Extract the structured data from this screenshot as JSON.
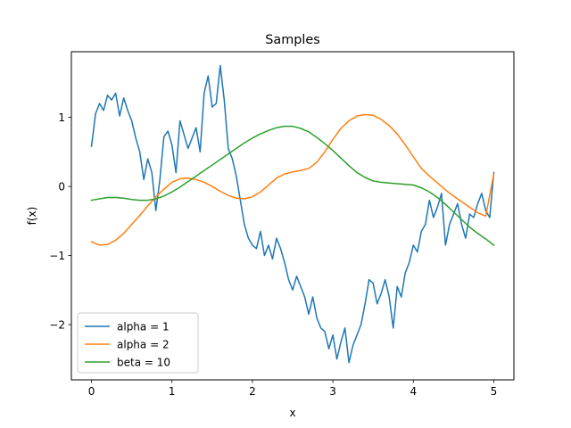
{
  "chart_data": {
    "type": "line",
    "title": "Samples",
    "xlabel": "x",
    "ylabel": "f(x)",
    "xlim": [
      -0.25,
      5.25
    ],
    "ylim": [
      -2.8,
      1.95
    ],
    "xticks": [
      0,
      1,
      2,
      3,
      4,
      5
    ],
    "yticks": [
      -2,
      -1,
      0,
      1
    ],
    "ytick_labels": [
      "−2",
      "−1",
      "0",
      "1"
    ],
    "grid": false,
    "legend_position": "lower-left",
    "series": [
      {
        "name": "alpha = 1",
        "color": "#1f77b4",
        "x": [
          0.0,
          0.05,
          0.1,
          0.15,
          0.2,
          0.25,
          0.3,
          0.35,
          0.4,
          0.45,
          0.5,
          0.55,
          0.6,
          0.65,
          0.7,
          0.75,
          0.8,
          0.85,
          0.9,
          0.95,
          1.0,
          1.05,
          1.1,
          1.15,
          1.2,
          1.25,
          1.3,
          1.35,
          1.4,
          1.45,
          1.5,
          1.55,
          1.6,
          1.65,
          1.7,
          1.75,
          1.8,
          1.85,
          1.9,
          1.95,
          2.0,
          2.05,
          2.1,
          2.15,
          2.2,
          2.25,
          2.3,
          2.35,
          2.4,
          2.45,
          2.5,
          2.55,
          2.6,
          2.65,
          2.7,
          2.75,
          2.8,
          2.85,
          2.9,
          2.95,
          3.0,
          3.05,
          3.1,
          3.15,
          3.2,
          3.25,
          3.3,
          3.35,
          3.4,
          3.45,
          3.5,
          3.55,
          3.6,
          3.65,
          3.7,
          3.75,
          3.8,
          3.85,
          3.9,
          3.95,
          4.0,
          4.05,
          4.1,
          4.15,
          4.2,
          4.25,
          4.3,
          4.35,
          4.4,
          4.45,
          4.5,
          4.55,
          4.6,
          4.65,
          4.7,
          4.75,
          4.8,
          4.85,
          4.9,
          4.95,
          5.0
        ],
        "values": [
          0.58,
          1.05,
          1.2,
          1.1,
          1.32,
          1.25,
          1.35,
          1.02,
          1.28,
          1.1,
          0.95,
          0.7,
          0.5,
          0.1,
          0.4,
          0.2,
          -0.35,
          0.1,
          0.72,
          0.8,
          0.6,
          0.2,
          0.95,
          0.75,
          0.55,
          0.7,
          0.85,
          0.5,
          1.35,
          1.6,
          1.15,
          1.2,
          1.75,
          1.25,
          0.55,
          0.4,
          0.15,
          -0.2,
          -0.55,
          -0.75,
          -0.85,
          -0.9,
          -0.65,
          -1.0,
          -0.85,
          -1.05,
          -0.75,
          -0.9,
          -1.1,
          -1.35,
          -1.5,
          -1.3,
          -1.45,
          -1.6,
          -1.85,
          -1.6,
          -1.9,
          -2.05,
          -2.1,
          -2.35,
          -2.15,
          -2.5,
          -2.25,
          -2.05,
          -2.55,
          -2.3,
          -2.15,
          -2.0,
          -1.7,
          -1.35,
          -1.4,
          -1.7,
          -1.55,
          -1.35,
          -1.6,
          -2.05,
          -1.45,
          -1.6,
          -1.25,
          -1.1,
          -0.85,
          -0.95,
          -0.65,
          -0.55,
          -0.2,
          -0.45,
          -0.3,
          -0.1,
          -0.85,
          -0.55,
          -0.4,
          -0.25,
          -0.55,
          -0.75,
          -0.4,
          -0.45,
          -0.25,
          -0.1,
          -0.35,
          -0.45,
          0.2
        ]
      },
      {
        "name": "alpha = 2",
        "color": "#ff7f0e",
        "x": [
          0.0,
          0.1,
          0.2,
          0.3,
          0.4,
          0.5,
          0.6,
          0.7,
          0.8,
          0.9,
          1.0,
          1.1,
          1.2,
          1.3,
          1.4,
          1.5,
          1.6,
          1.7,
          1.8,
          1.9,
          2.0,
          2.1,
          2.2,
          2.3,
          2.4,
          2.5,
          2.6,
          2.7,
          2.8,
          2.9,
          3.0,
          3.1,
          3.2,
          3.3,
          3.4,
          3.5,
          3.6,
          3.7,
          3.8,
          3.9,
          4.0,
          4.1,
          4.2,
          4.3,
          4.4,
          4.5,
          4.6,
          4.7,
          4.8,
          4.9,
          5.0
        ],
        "values": [
          -0.8,
          -0.85,
          -0.84,
          -0.78,
          -0.68,
          -0.55,
          -0.42,
          -0.28,
          -0.15,
          -0.04,
          0.06,
          0.11,
          0.12,
          0.1,
          0.06,
          0.0,
          -0.07,
          -0.13,
          -0.17,
          -0.18,
          -0.15,
          -0.08,
          0.02,
          0.12,
          0.18,
          0.21,
          0.23,
          0.26,
          0.35,
          0.5,
          0.68,
          0.84,
          0.95,
          1.02,
          1.04,
          1.03,
          0.97,
          0.88,
          0.76,
          0.6,
          0.43,
          0.26,
          0.15,
          0.05,
          -0.05,
          -0.14,
          -0.22,
          -0.3,
          -0.38,
          -0.43,
          0.18
        ]
      },
      {
        "name": "beta = 10",
        "color": "#2ca02c",
        "x": [
          0.0,
          0.1,
          0.2,
          0.3,
          0.4,
          0.5,
          0.6,
          0.7,
          0.8,
          0.9,
          1.0,
          1.1,
          1.2,
          1.3,
          1.4,
          1.5,
          1.6,
          1.7,
          1.8,
          1.9,
          2.0,
          2.1,
          2.2,
          2.3,
          2.4,
          2.5,
          2.6,
          2.7,
          2.8,
          2.9,
          3.0,
          3.1,
          3.2,
          3.3,
          3.4,
          3.5,
          3.6,
          3.7,
          3.8,
          3.9,
          4.0,
          4.1,
          4.2,
          4.3,
          4.4,
          4.5,
          4.6,
          4.7,
          4.8,
          4.9,
          5.0
        ],
        "values": [
          -0.2,
          -0.18,
          -0.16,
          -0.16,
          -0.17,
          -0.19,
          -0.2,
          -0.2,
          -0.18,
          -0.14,
          -0.08,
          -0.01,
          0.07,
          0.15,
          0.23,
          0.31,
          0.39,
          0.47,
          0.55,
          0.63,
          0.7,
          0.76,
          0.81,
          0.85,
          0.87,
          0.87,
          0.84,
          0.79,
          0.71,
          0.62,
          0.52,
          0.41,
          0.3,
          0.2,
          0.13,
          0.08,
          0.06,
          0.05,
          0.04,
          0.03,
          0.02,
          -0.02,
          -0.08,
          -0.16,
          -0.26,
          -0.37,
          -0.48,
          -0.59,
          -0.68,
          -0.76,
          -0.85
        ]
      }
    ]
  }
}
